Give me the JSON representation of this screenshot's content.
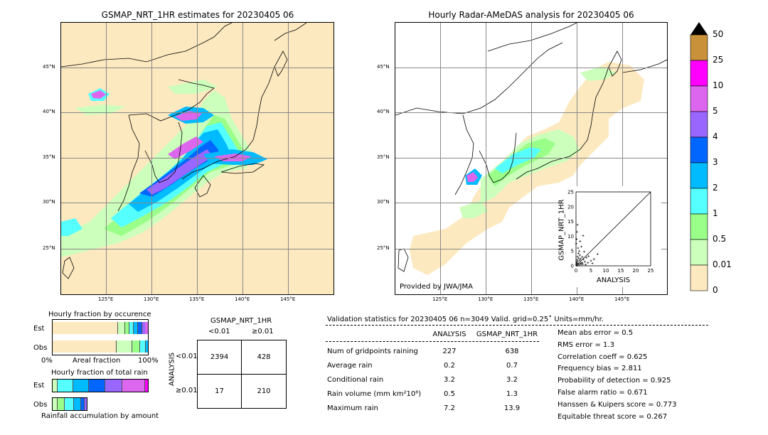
{
  "left_map": {
    "title": "GSMAP_NRT_1HR estimates for 20230405 06",
    "lat_labels": [
      "45°N",
      "40°N",
      "35°N",
      "30°N",
      "25°N"
    ],
    "lon_labels": [
      "125°E",
      "130°E",
      "135°E",
      "140°E",
      "145°E"
    ]
  },
  "right_map": {
    "title": "Hourly Radar-AMeDAS analysis for 20230405 06",
    "lat_labels": [
      "45°N",
      "40°N",
      "35°N",
      "30°N",
      "25°N"
    ],
    "lon_labels": [
      "125°E",
      "130°E",
      "135°E",
      "140°E",
      "145°E"
    ],
    "credit": "Provided by JWA/JMA"
  },
  "colorbar": {
    "labels": [
      "50",
      "25",
      "10",
      "5",
      "4",
      "3",
      "2",
      "1",
      "0.5",
      "0.01",
      "0"
    ],
    "colors": [
      "#c8913a",
      "#ff00ff",
      "#dd66ee",
      "#9966ff",
      "#0066ff",
      "#00bbff",
      "#55ffff",
      "#99ff88",
      "#ccffbb",
      "#fde9bf"
    ],
    "top_arrow_color": "#000000"
  },
  "fraction_panels": {
    "occurrence_title": "Hourly fraction by occurence",
    "est_label": "Est",
    "obs_label": "Obs",
    "axis_left": "0%",
    "axis_mid": "Areal fraction",
    "axis_right": "100%",
    "total_title": "Hourly fraction of total rain",
    "est_label2": "Est",
    "obs_label2": "Obs",
    "bottom_caption": "Rainfall accumulation by amount"
  },
  "contingency": {
    "title": "GSMAP_NRT_1HR",
    "col_lt": "<0.01",
    "col_ge": "≥0.01",
    "row_axis": "ANALYSIS",
    "row_lt": "<0.01",
    "row_ge": "≥0.01",
    "cells": [
      "2394",
      "428",
      "17",
      "210"
    ]
  },
  "validation": {
    "header": "Validation statistics for 20230405 06  n=3049 Valid. grid=0.25˚ Units=mm/hr.",
    "col_analysis": "ANALYSIS",
    "col_gsmap": "GSMAP_NRT_1HR",
    "rows": [
      {
        "label": "Num of gridpoints raining",
        "analysis": "227",
        "gsmap": "638"
      },
      {
        "label": "Average rain",
        "analysis": "0.2",
        "gsmap": "0.7"
      },
      {
        "label": "Conditional rain",
        "analysis": "3.2",
        "gsmap": "3.2"
      },
      {
        "label": "Rain volume (mm km²10⁶)",
        "analysis": "0.5",
        "gsmap": "1.3"
      },
      {
        "label": "Maximum rain",
        "analysis": "7.2",
        "gsmap": "13.9"
      }
    ],
    "scores": [
      "Mean abs error =    0.5",
      "RMS error =    1.3",
      "Correlation coeff =  0.625",
      "Frequency bias =  2.811",
      "Probability of detection =  0.925",
      "False alarm ratio =  0.671",
      "Hanssen & Kuipers score =  0.773",
      "Equitable threat score =  0.267"
    ]
  },
  "chart_data": {
    "type": "scatter",
    "xlabel": "ANALYSIS",
    "ylabel": "GSMAP_NRT_1HR",
    "xlim": [
      0,
      25
    ],
    "ylim": [
      0,
      25
    ],
    "ticks": [
      0,
      5,
      10,
      15,
      20,
      25
    ],
    "tick_labels": [
      "0",
      "5",
      "10",
      "15",
      "20",
      "25"
    ],
    "points": [
      [
        0.1,
        0.5
      ],
      [
        0.2,
        1.2
      ],
      [
        0.3,
        2.0
      ],
      [
        0.4,
        0.8
      ],
      [
        0.5,
        3.1
      ],
      [
        0.6,
        1.5
      ],
      [
        0.8,
        4.2
      ],
      [
        0.9,
        2.6
      ],
      [
        1.0,
        0.3
      ],
      [
        1.1,
        5.0
      ],
      [
        1.2,
        1.9
      ],
      [
        1.3,
        3.6
      ],
      [
        1.5,
        0.9
      ],
      [
        1.6,
        2.4
      ],
      [
        1.8,
        6.5
      ],
      [
        2.0,
        1.1
      ],
      [
        2.1,
        3.0
      ],
      [
        2.3,
        0.6
      ],
      [
        2.5,
        2.2
      ],
      [
        2.7,
        4.8
      ],
      [
        3.0,
        1.4
      ],
      [
        3.2,
        0.4
      ],
      [
        3.5,
        2.8
      ],
      [
        4.0,
        1.0
      ],
      [
        4.2,
        3.3
      ],
      [
        5.0,
        1.7
      ],
      [
        5.5,
        0.8
      ],
      [
        6.0,
        2.3
      ],
      [
        7.2,
        4.0
      ],
      [
        0.1,
        7.5
      ],
      [
        0.2,
        9.0
      ],
      [
        0.3,
        11.5
      ],
      [
        0.5,
        13.9
      ],
      [
        1.4,
        8.3
      ],
      [
        2.4,
        10.2
      ],
      [
        0.7,
        6.0
      ],
      [
        0.2,
        0.2
      ],
      [
        0.4,
        0.1
      ],
      [
        0.9,
        0.7
      ],
      [
        1.7,
        0.5
      ]
    ]
  }
}
